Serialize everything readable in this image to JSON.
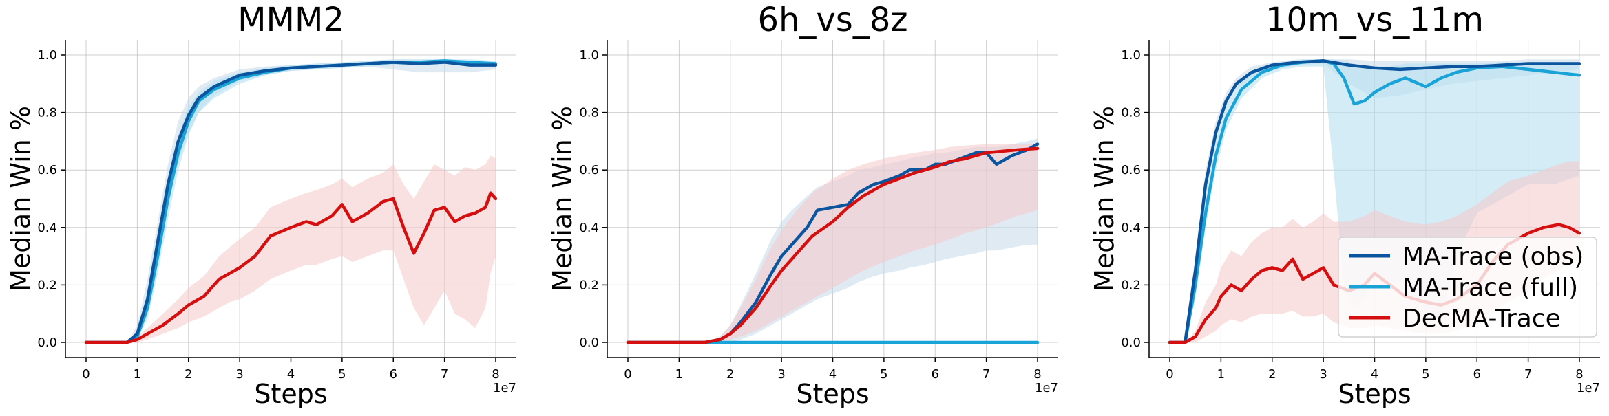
{
  "figure": {
    "background": "#ffffff"
  },
  "colors": {
    "obs": "#0b559f",
    "full": "#1aa3d6",
    "dec": "#d50f0f",
    "obs_band": "#c5d8ea",
    "full_band": "#b6dff0",
    "dec_band": "#f6c8c8"
  },
  "legend": {
    "entries": [
      "MA-Trace (obs)",
      "MA-Trace (full)",
      "DecMA-Trace"
    ],
    "placement": "lower-right"
  },
  "chart_data": [
    {
      "type": "line",
      "title": "MMM2",
      "xlabel": "Steps",
      "ylabel": "Median Win %",
      "x_scale_label": "1e7",
      "xlim": [
        0,
        8
      ],
      "ylim": [
        0,
        1.0
      ],
      "xticks": [
        "0",
        "1",
        "2",
        "3",
        "4",
        "5",
        "6",
        "7",
        "8"
      ],
      "yticks": [
        "0.0",
        "0.2",
        "0.4",
        "0.6",
        "0.8",
        "1.0"
      ],
      "grid": true,
      "series": [
        {
          "name": "MA-Trace (obs)",
          "key": "obs",
          "x": [
            0,
            0.8,
            1.0,
            1.2,
            1.4,
            1.6,
            1.8,
            2.0,
            2.2,
            2.5,
            3.0,
            3.5,
            4.0,
            4.5,
            5.0,
            5.5,
            6.0,
            6.5,
            7.0,
            7.5,
            8.0
          ],
          "y": [
            0,
            0,
            0.03,
            0.15,
            0.35,
            0.55,
            0.7,
            0.79,
            0.85,
            0.89,
            0.93,
            0.945,
            0.955,
            0.96,
            0.965,
            0.97,
            0.975,
            0.97,
            0.975,
            0.965,
            0.965
          ],
          "lower": [
            0,
            0,
            0.01,
            0.1,
            0.28,
            0.47,
            0.63,
            0.73,
            0.8,
            0.86,
            0.91,
            0.93,
            0.945,
            0.95,
            0.955,
            0.96,
            0.95,
            0.94,
            0.94,
            0.94,
            0.95
          ],
          "upper": [
            0,
            0,
            0.06,
            0.22,
            0.42,
            0.62,
            0.77,
            0.85,
            0.89,
            0.92,
            0.95,
            0.96,
            0.965,
            0.97,
            0.975,
            0.98,
            0.985,
            0.985,
            0.985,
            0.98,
            0.975
          ]
        },
        {
          "name": "MA-Trace (full)",
          "key": "full",
          "x": [
            0,
            0.8,
            1.0,
            1.2,
            1.4,
            1.6,
            1.8,
            2.0,
            2.2,
            2.5,
            3.0,
            3.5,
            4.0,
            4.5,
            5.0,
            5.5,
            6.0,
            6.5,
            7.0,
            7.5,
            8.0
          ],
          "y": [
            0,
            0,
            0.02,
            0.12,
            0.3,
            0.5,
            0.66,
            0.77,
            0.84,
            0.88,
            0.92,
            0.94,
            0.955,
            0.96,
            0.965,
            0.97,
            0.975,
            0.975,
            0.98,
            0.975,
            0.97
          ],
          "lower": [
            0,
            0,
            0.01,
            0.08,
            0.24,
            0.43,
            0.6,
            0.72,
            0.8,
            0.85,
            0.9,
            0.93,
            0.945,
            0.95,
            0.955,
            0.96,
            0.965,
            0.965,
            0.97,
            0.965,
            0.96
          ],
          "upper": [
            0,
            0,
            0.04,
            0.18,
            0.37,
            0.57,
            0.72,
            0.82,
            0.87,
            0.91,
            0.94,
            0.955,
            0.965,
            0.97,
            0.975,
            0.98,
            0.985,
            0.985,
            0.985,
            0.985,
            0.98
          ]
        },
        {
          "name": "DecMA-Trace",
          "key": "dec",
          "x": [
            0,
            0.8,
            1.0,
            1.2,
            1.5,
            1.8,
            2.0,
            2.3,
            2.6,
            2.8,
            3.0,
            3.3,
            3.6,
            4.0,
            4.3,
            4.5,
            4.8,
            5.0,
            5.2,
            5.5,
            5.8,
            6.0,
            6.2,
            6.4,
            6.6,
            6.8,
            7.0,
            7.2,
            7.4,
            7.6,
            7.8,
            7.9,
            8.0
          ],
          "y": [
            0,
            0,
            0.01,
            0.03,
            0.06,
            0.1,
            0.13,
            0.16,
            0.22,
            0.24,
            0.26,
            0.3,
            0.37,
            0.4,
            0.42,
            0.41,
            0.44,
            0.48,
            0.42,
            0.45,
            0.49,
            0.5,
            0.4,
            0.31,
            0.38,
            0.46,
            0.47,
            0.42,
            0.44,
            0.45,
            0.47,
            0.52,
            0.5
          ],
          "lower": [
            0,
            0,
            0,
            0.01,
            0.03,
            0.05,
            0.07,
            0.09,
            0.12,
            0.14,
            0.15,
            0.18,
            0.22,
            0.25,
            0.27,
            0.27,
            0.29,
            0.3,
            0.28,
            0.3,
            0.32,
            0.32,
            0.22,
            0.12,
            0.06,
            0.12,
            0.18,
            0.1,
            0.08,
            0.05,
            0.12,
            0.24,
            0.3
          ],
          "upper": [
            0,
            0,
            0.02,
            0.05,
            0.1,
            0.15,
            0.19,
            0.23,
            0.3,
            0.33,
            0.36,
            0.4,
            0.47,
            0.5,
            0.52,
            0.53,
            0.55,
            0.57,
            0.54,
            0.57,
            0.59,
            0.62,
            0.55,
            0.5,
            0.56,
            0.62,
            0.6,
            0.58,
            0.61,
            0.6,
            0.62,
            0.65,
            0.64
          ]
        }
      ]
    },
    {
      "type": "line",
      "title": "6h_vs_8z",
      "xlabel": "Steps",
      "ylabel": "Median Win %",
      "x_scale_label": "1e7",
      "xlim": [
        0,
        8
      ],
      "ylim": [
        0,
        1.0
      ],
      "xticks": [
        "0",
        "1",
        "2",
        "3",
        "4",
        "5",
        "6",
        "7",
        "8"
      ],
      "yticks": [
        "0.0",
        "0.2",
        "0.4",
        "0.6",
        "0.8",
        "1.0"
      ],
      "grid": true,
      "series": [
        {
          "name": "MA-Trace (obs)",
          "key": "obs",
          "x": [
            0,
            1.5,
            1.8,
            2.0,
            2.2,
            2.5,
            2.8,
            3.0,
            3.2,
            3.5,
            3.7,
            4.0,
            4.3,
            4.5,
            4.8,
            5.0,
            5.3,
            5.5,
            5.8,
            6.0,
            6.2,
            6.5,
            6.8,
            7.0,
            7.2,
            7.5,
            7.8,
            8.0
          ],
          "y": [
            0,
            0,
            0.01,
            0.03,
            0.07,
            0.14,
            0.24,
            0.3,
            0.34,
            0.4,
            0.46,
            0.47,
            0.48,
            0.52,
            0.55,
            0.56,
            0.58,
            0.6,
            0.6,
            0.62,
            0.62,
            0.64,
            0.66,
            0.66,
            0.62,
            0.65,
            0.67,
            0.69
          ],
          "lower": [
            0,
            0,
            0,
            0,
            0.01,
            0.03,
            0.06,
            0.08,
            0.1,
            0.13,
            0.15,
            0.17,
            0.19,
            0.21,
            0.23,
            0.24,
            0.25,
            0.26,
            0.27,
            0.28,
            0.29,
            0.3,
            0.31,
            0.32,
            0.32,
            0.33,
            0.34,
            0.34
          ],
          "upper": [
            0,
            0,
            0.02,
            0.06,
            0.13,
            0.24,
            0.36,
            0.42,
            0.46,
            0.51,
            0.54,
            0.56,
            0.58,
            0.6,
            0.61,
            0.62,
            0.63,
            0.64,
            0.65,
            0.66,
            0.66,
            0.67,
            0.68,
            0.68,
            0.68,
            0.69,
            0.7,
            0.71
          ]
        },
        {
          "name": "MA-Trace (full)",
          "key": "full",
          "x": [
            0,
            8
          ],
          "y": [
            0,
            0
          ],
          "lower": [
            0,
            0
          ],
          "upper": [
            0,
            0
          ]
        },
        {
          "name": "DecMA-Trace",
          "key": "dec",
          "x": [
            0,
            1.5,
            1.8,
            2.0,
            2.2,
            2.5,
            2.8,
            3.0,
            3.3,
            3.6,
            4.0,
            4.3,
            4.6,
            5.0,
            5.3,
            5.6,
            6.0,
            6.3,
            6.6,
            7.0,
            7.3,
            7.6,
            8.0
          ],
          "y": [
            0,
            0,
            0.01,
            0.03,
            0.06,
            0.12,
            0.2,
            0.25,
            0.31,
            0.37,
            0.42,
            0.47,
            0.51,
            0.55,
            0.57,
            0.59,
            0.61,
            0.63,
            0.64,
            0.66,
            0.665,
            0.67,
            0.675
          ],
          "lower": [
            0,
            0,
            0,
            0.01,
            0.02,
            0.04,
            0.07,
            0.09,
            0.12,
            0.15,
            0.19,
            0.22,
            0.25,
            0.28,
            0.3,
            0.32,
            0.34,
            0.36,
            0.38,
            0.4,
            0.42,
            0.44,
            0.46
          ],
          "upper": [
            0,
            0,
            0.02,
            0.06,
            0.12,
            0.22,
            0.33,
            0.39,
            0.46,
            0.52,
            0.57,
            0.6,
            0.62,
            0.64,
            0.65,
            0.66,
            0.67,
            0.68,
            0.685,
            0.69,
            0.69,
            0.69,
            0.69
          ]
        }
      ]
    },
    {
      "type": "line",
      "title": "10m_vs_11m",
      "xlabel": "Steps",
      "ylabel": "Median Win %",
      "x_scale_label": "1e7",
      "xlim": [
        0,
        8
      ],
      "ylim": [
        0,
        1.0
      ],
      "xticks": [
        "0",
        "1",
        "2",
        "3",
        "4",
        "5",
        "6",
        "7",
        "8"
      ],
      "yticks": [
        "0.0",
        "0.2",
        "0.4",
        "0.6",
        "0.8",
        "1.0"
      ],
      "grid": true,
      "series": [
        {
          "name": "MA-Trace (obs)",
          "key": "obs",
          "x": [
            0,
            0.3,
            0.5,
            0.7,
            0.9,
            1.1,
            1.3,
            1.6,
            2.0,
            2.5,
            3.0,
            3.5,
            4.0,
            4.5,
            5.0,
            5.5,
            6.0,
            6.5,
            7.0,
            7.5,
            8.0
          ],
          "y": [
            0,
            0,
            0.25,
            0.55,
            0.73,
            0.84,
            0.9,
            0.94,
            0.965,
            0.975,
            0.98,
            0.965,
            0.955,
            0.95,
            0.955,
            0.96,
            0.96,
            0.965,
            0.97,
            0.97,
            0.97
          ],
          "lower": [
            0,
            0,
            0.2,
            0.5,
            0.7,
            0.82,
            0.88,
            0.92,
            0.95,
            0.965,
            0.97,
            0.9,
            0.85,
            0.86,
            0.88,
            0.9,
            0.91,
            0.92,
            0.93,
            0.94,
            0.95
          ],
          "upper": [
            0,
            0,
            0.3,
            0.6,
            0.77,
            0.87,
            0.92,
            0.96,
            0.975,
            0.985,
            0.985,
            0.985,
            0.98,
            0.98,
            0.98,
            0.98,
            0.98,
            0.98,
            0.985,
            0.985,
            0.985
          ]
        },
        {
          "name": "MA-Trace (full)",
          "key": "full",
          "x": [
            0,
            0.3,
            0.5,
            0.7,
            0.9,
            1.1,
            1.4,
            1.8,
            2.2,
            2.6,
            3.0,
            3.2,
            3.4,
            3.6,
            3.8,
            4.0,
            4.3,
            4.6,
            5.0,
            5.3,
            5.6,
            6.0,
            6.5,
            7.0,
            7.5,
            8.0
          ],
          "y": [
            0,
            0,
            0.2,
            0.45,
            0.65,
            0.78,
            0.88,
            0.94,
            0.965,
            0.975,
            0.98,
            0.97,
            0.92,
            0.83,
            0.84,
            0.87,
            0.9,
            0.92,
            0.89,
            0.92,
            0.94,
            0.955,
            0.96,
            0.95,
            0.94,
            0.93
          ],
          "lower": [
            0,
            0,
            0.15,
            0.4,
            0.6,
            0.74,
            0.85,
            0.92,
            0.95,
            0.96,
            0.96,
            0.6,
            0.2,
            0.12,
            0.15,
            0.25,
            0.2,
            0.22,
            0.1,
            0.08,
            0.3,
            0.45,
            0.5,
            0.55,
            0.55,
            0.58
          ],
          "upper": [
            0,
            0,
            0.25,
            0.5,
            0.7,
            0.82,
            0.91,
            0.96,
            0.975,
            0.985,
            0.985,
            0.985,
            0.98,
            0.97,
            0.96,
            0.96,
            0.96,
            0.97,
            0.97,
            0.97,
            0.97,
            0.97,
            0.975,
            0.975,
            0.975,
            0.97
          ]
        },
        {
          "name": "DecMA-Trace",
          "key": "dec",
          "x": [
            0,
            0.3,
            0.5,
            0.7,
            0.9,
            1.0,
            1.2,
            1.4,
            1.6,
            1.8,
            2.0,
            2.2,
            2.4,
            2.6,
            2.8,
            3.0,
            3.2,
            3.5,
            3.8,
            4.0,
            4.3,
            4.6,
            5.0,
            5.3,
            5.6,
            6.0,
            6.3,
            6.6,
            7.0,
            7.3,
            7.6,
            7.8,
            8.0
          ],
          "y": [
            0,
            0,
            0.02,
            0.08,
            0.12,
            0.16,
            0.2,
            0.18,
            0.22,
            0.25,
            0.26,
            0.25,
            0.29,
            0.22,
            0.24,
            0.26,
            0.2,
            0.18,
            0.2,
            0.24,
            0.2,
            0.16,
            0.14,
            0.13,
            0.15,
            0.2,
            0.28,
            0.34,
            0.38,
            0.4,
            0.41,
            0.4,
            0.38
          ],
          "lower": [
            0,
            0,
            0,
            0.02,
            0.04,
            0.06,
            0.08,
            0.07,
            0.09,
            0.1,
            0.1,
            0.1,
            0.11,
            0.09,
            0.09,
            0.1,
            0.07,
            0.05,
            0.05,
            0.06,
            0.05,
            0.04,
            0.03,
            0.03,
            0.04,
            0.06,
            0.1,
            0.14,
            0.18,
            0.22,
            0.25,
            0.27,
            0.28
          ],
          "upper": [
            0,
            0,
            0.04,
            0.14,
            0.2,
            0.26,
            0.32,
            0.3,
            0.35,
            0.38,
            0.4,
            0.4,
            0.43,
            0.4,
            0.42,
            0.45,
            0.42,
            0.42,
            0.44,
            0.46,
            0.44,
            0.42,
            0.41,
            0.42,
            0.44,
            0.48,
            0.52,
            0.56,
            0.58,
            0.6,
            0.62,
            0.63,
            0.63
          ]
        }
      ]
    }
  ]
}
